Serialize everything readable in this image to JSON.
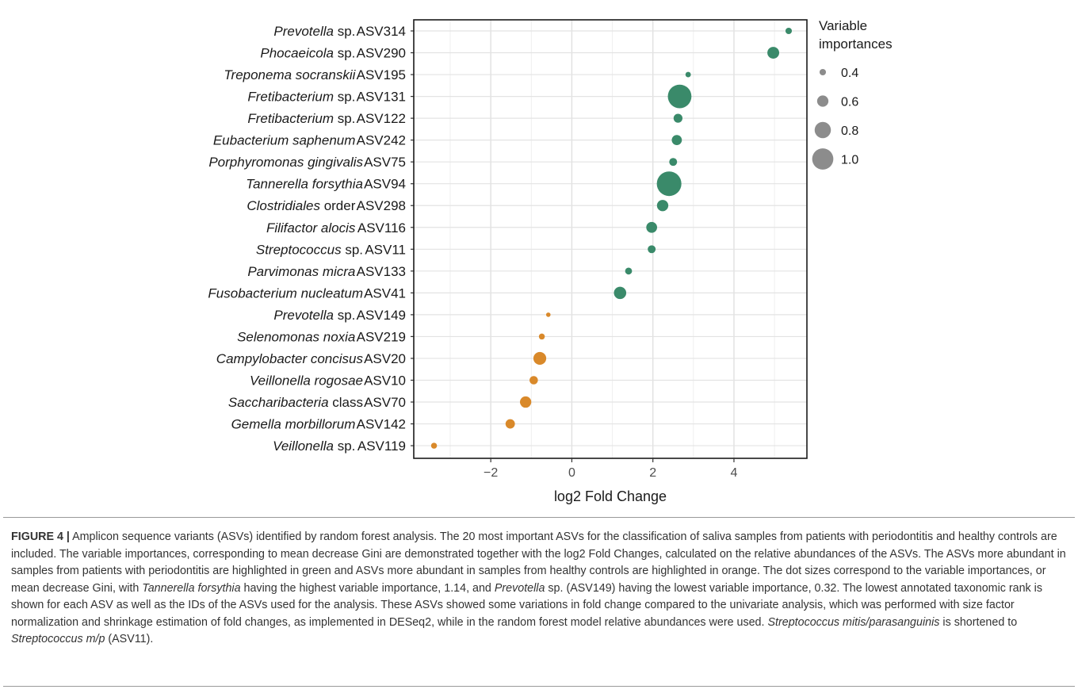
{
  "chart_data": {
    "type": "scatter",
    "xlabel": "log2 Fold Change",
    "xticks": [
      -2,
      0,
      2,
      4
    ],
    "xlim": [
      -3.9,
      5.8
    ],
    "grid": true,
    "legend": {
      "title_lines": [
        "Variable",
        "importances"
      ],
      "placement": "right",
      "entries": [
        {
          "label": "0.4",
          "value": 0.4
        },
        {
          "label": "0.6",
          "value": 0.6
        },
        {
          "label": "0.8",
          "value": 0.8
        },
        {
          "label": "1.0",
          "value": 1.0
        }
      ]
    },
    "colors": {
      "periodontitis": "#3a8a6a",
      "healthy": "#d9892a",
      "legend": "#8c8c8c"
    },
    "rows": [
      {
        "taxon": "Prevotella",
        "rank": "sp.",
        "asv": "ASV314",
        "log2fc": 5.35,
        "importance": 0.4,
        "group": "periodontitis"
      },
      {
        "taxon": "Phocaeicola",
        "rank": "sp.",
        "asv": "ASV290",
        "log2fc": 4.97,
        "importance": 0.62,
        "group": "periodontitis"
      },
      {
        "taxon": "Treponema socranskii",
        "rank": "",
        "asv": "ASV195",
        "log2fc": 2.87,
        "importance": 0.36,
        "group": "periodontitis"
      },
      {
        "taxon": "Fretibacterium",
        "rank": "sp.",
        "asv": "ASV131",
        "log2fc": 2.66,
        "importance": 1.1,
        "group": "periodontitis"
      },
      {
        "taxon": "Fretibacterium",
        "rank": "sp.",
        "asv": "ASV122",
        "log2fc": 2.62,
        "importance": 0.5,
        "group": "periodontitis"
      },
      {
        "taxon": "Eubacterium saphenum",
        "rank": "",
        "asv": "ASV242",
        "log2fc": 2.59,
        "importance": 0.55,
        "group": "periodontitis"
      },
      {
        "taxon": "Porphyromonas gingivalis",
        "rank": "",
        "asv": "ASV75",
        "log2fc": 2.5,
        "importance": 0.46,
        "group": "periodontitis"
      },
      {
        "taxon": "Tannerella forsythia",
        "rank": "",
        "asv": "ASV94",
        "log2fc": 2.4,
        "importance": 1.14,
        "group": "periodontitis"
      },
      {
        "taxon": "Clostridiales",
        "rank": "order",
        "asv": "ASV298",
        "log2fc": 2.24,
        "importance": 0.6,
        "group": "periodontitis"
      },
      {
        "taxon": "Filifactor alocis",
        "rank": "",
        "asv": "ASV116",
        "log2fc": 1.97,
        "importance": 0.58,
        "group": "periodontitis"
      },
      {
        "taxon": "Streptococcus",
        "rank": "sp.",
        "asv": "ASV11",
        "log2fc": 1.97,
        "importance": 0.46,
        "group": "periodontitis"
      },
      {
        "taxon": "Parvimonas micra",
        "rank": "",
        "asv": "ASV133",
        "log2fc": 1.4,
        "importance": 0.42,
        "group": "periodontitis"
      },
      {
        "taxon": "Fusobacterium nucleatum",
        "rank": "",
        "asv": "ASV41",
        "log2fc": 1.19,
        "importance": 0.64,
        "group": "periodontitis"
      },
      {
        "taxon": "Prevotella",
        "rank": "sp.",
        "asv": "ASV149",
        "log2fc": -0.58,
        "importance": 0.32,
        "group": "healthy"
      },
      {
        "taxon": "Selenomonas noxia",
        "rank": "",
        "asv": "ASV219",
        "log2fc": -0.74,
        "importance": 0.38,
        "group": "healthy"
      },
      {
        "taxon": "Campylobacter concisus",
        "rank": "",
        "asv": "ASV20",
        "log2fc": -0.79,
        "importance": 0.66,
        "group": "healthy"
      },
      {
        "taxon": "Veillonella rogosae",
        "rank": "",
        "asv": "ASV10",
        "log2fc": -0.94,
        "importance": 0.48,
        "group": "healthy"
      },
      {
        "taxon": "Saccharibacteria",
        "rank": "class",
        "asv": "ASV70",
        "log2fc": -1.14,
        "importance": 0.6,
        "group": "healthy"
      },
      {
        "taxon": "Gemella morbillorum",
        "rank": "",
        "asv": "ASV142",
        "log2fc": -1.52,
        "importance": 0.52,
        "group": "healthy"
      },
      {
        "taxon": "Veillonella",
        "rank": "sp.",
        "asv": "ASV119",
        "log2fc": -3.4,
        "importance": 0.38,
        "group": "healthy"
      }
    ]
  },
  "caption": {
    "label": "FIGURE 4 |",
    "s1": " Amplicon sequence variants (ASVs) identified by random forest analysis. The 20 most important ASVs for the classification of saliva samples from patients with periodontitis and healthy controls are included. The variable importances, corresponding to mean decrease Gini are demonstrated together with the log2 Fold Changes, calculated on the relative abundances of the ASVs. The ASVs more abundant in samples from patients with periodontitis are highlighted in green and ASVs more abundant in samples from healthy controls are highlighted in orange. The dot sizes correspond to the variable importances, or mean decrease Gini, with ",
    "i1": "Tannerella forsythia",
    "s2": " having the highest variable importance, 1.14, and ",
    "i2": "Prevotella",
    "s3": " sp. (ASV149) having the lowest variable importance, 0.32. The lowest annotated taxonomic rank is shown for each ASV as well as the IDs of the ASVs used for the analysis. These ASVs showed some variations in fold change compared to the univariate analysis, which was performed with size factor normalization and shrinkage estimation of fold changes, as implemented in DESeq2, while in the random forest model relative abundances were used. ",
    "i3": "Streptococcus mitis/parasanguinis",
    "s4": " is shortened to ",
    "i4": "Streptococcus m/p",
    "s5": " (ASV11)."
  }
}
